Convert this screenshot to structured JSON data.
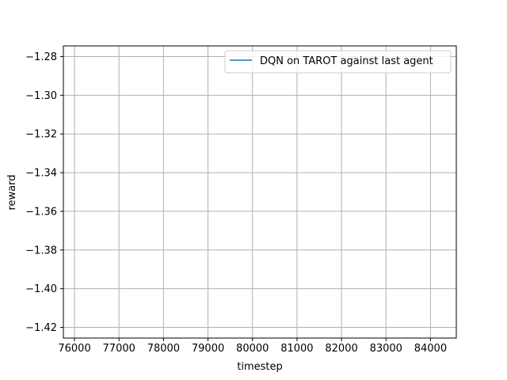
{
  "chart_data": {
    "type": "line",
    "title": "",
    "xlabel": "timestep",
    "ylabel": "reward",
    "xlim": [
      75750,
      84580
    ],
    "ylim": [
      -1.4255,
      -1.2745
    ],
    "xticks": [
      76000,
      77000,
      78000,
      79000,
      80000,
      81000,
      82000,
      83000,
      84000
    ],
    "xtick_labels": [
      "76000",
      "77000",
      "78000",
      "79000",
      "80000",
      "81000",
      "82000",
      "83000",
      "84000"
    ],
    "yticks": [
      -1.28,
      -1.3,
      -1.32,
      -1.34,
      -1.36,
      -1.38,
      -1.4,
      -1.42
    ],
    "ytick_labels": [
      "−1.28",
      "−1.30",
      "−1.32",
      "−1.34",
      "−1.36",
      "−1.38",
      "−1.40",
      "−1.42"
    ],
    "grid": true,
    "legend_position": "upper-right",
    "series": [
      {
        "name": "DQN on TAROT against last agent",
        "color": "#1f77b4",
        "x": [],
        "y": []
      }
    ]
  }
}
